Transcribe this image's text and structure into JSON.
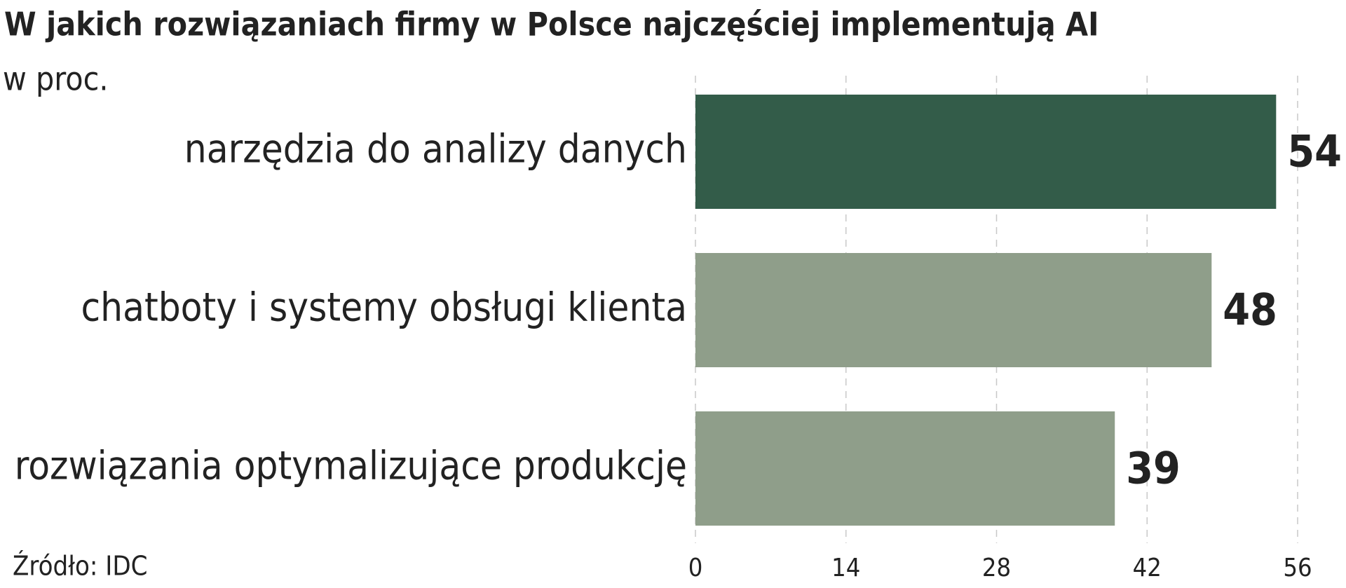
{
  "chart_data": {
    "type": "hbar",
    "title": "W jakich rozwiązaniach firmy w Polsce najczęściej implementują AI",
    "subtitle": "w proc.",
    "source": "Źródło: IDC",
    "categories": [
      "narzędzia do analizy danych",
      "chatboty i systemy obsługi klienta",
      "rozwiązania optymalizujące produkcję"
    ],
    "values": [
      54,
      48,
      39
    ],
    "colors": [
      "#335c49",
      "#8f9e8a",
      "#8f9e8a"
    ],
    "xlim": [
      0,
      56
    ],
    "xticks": [
      0,
      14,
      28,
      42,
      56
    ],
    "grid": true
  }
}
